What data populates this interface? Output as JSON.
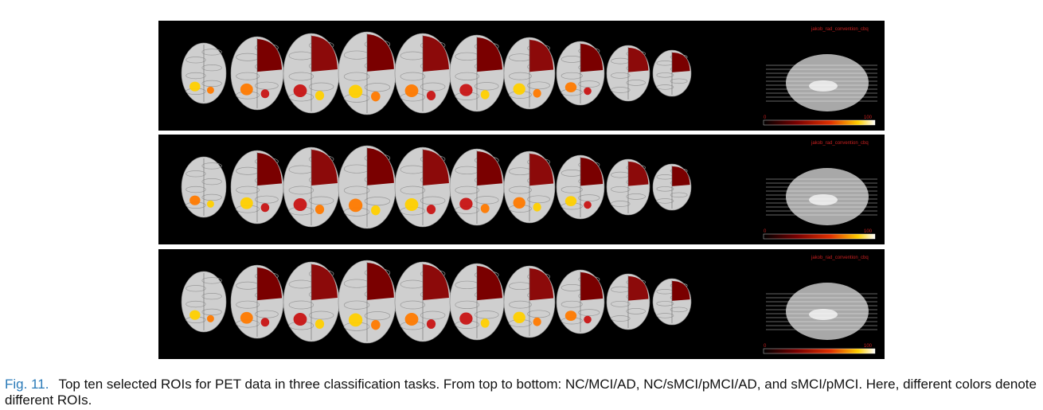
{
  "figure": {
    "panels": [
      {
        "corner_label": "jakob_rad_convention_cbq",
        "scale_min": "0",
        "scale_max": "100"
      },
      {
        "corner_label": "jakob_rad_convention_cbq",
        "scale_min": "0",
        "scale_max": "100"
      },
      {
        "corner_label": "jakob_rad_convention_cbq",
        "scale_min": "0",
        "scale_max": "100"
      }
    ],
    "caption": {
      "label": "Fig. 11.",
      "text": "Top ten selected ROIs for PET data in three classification tasks. From top to bottom: NC/MCI/AD, NC/sMCI/pMCI/AD, and sMCI/pMCI. Here, different colors denote different ROIs."
    }
  },
  "colors": {
    "background": "#000000",
    "dark_red": "#7a0000",
    "red": "#c81414",
    "orange": "#ff7a00",
    "yellow": "#ffd000",
    "brain_gray": "#cfcfcf",
    "caption_label": "#2a7ab8"
  }
}
